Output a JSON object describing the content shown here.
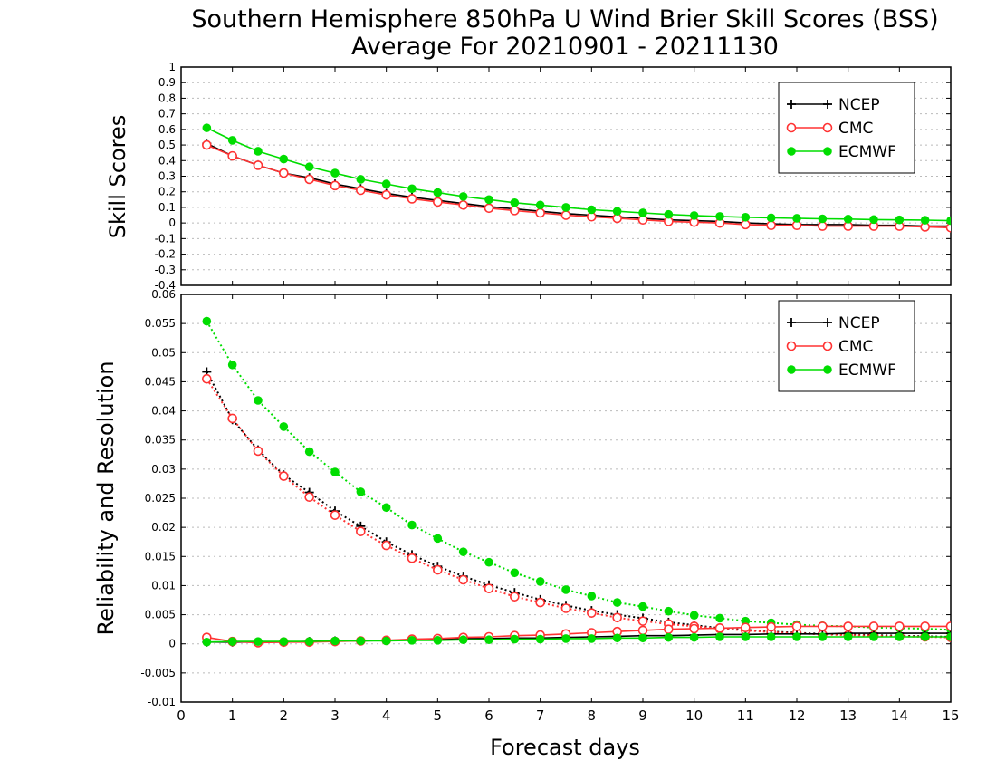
{
  "title": {
    "line1": "Southern Hemisphere 850hPa U Wind Brier Skill Scores (BSS)",
    "line2": "Average For 20210901 - 20211130"
  },
  "xlabel": "Forecast days",
  "colors": {
    "NCEP": "#000000",
    "CMC": "#ff3333",
    "ECMWF": "#00dd00"
  },
  "chart_data": [
    {
      "type": "line",
      "ylabel": "Skill Scores",
      "ylim": [
        -0.4,
        1
      ],
      "yticks": [
        "1",
        "0.9",
        "0.8",
        "0.7",
        "0.6",
        "0.5",
        "0.4",
        "0.3",
        "0.2",
        "0.1",
        "0",
        "-0.1",
        "-0.2",
        "-0.3",
        "-0.4"
      ],
      "xlim": [
        0,
        15
      ],
      "xticks": [
        "0",
        "1",
        "2",
        "3",
        "4",
        "5",
        "6",
        "7",
        "8",
        "9",
        "10",
        "11",
        "12",
        "13",
        "14",
        "15"
      ],
      "grid": true,
      "legend": "top-right",
      "x": [
        0.5,
        1,
        1.5,
        2,
        2.5,
        3,
        3.5,
        4,
        4.5,
        5,
        5.5,
        6,
        6.5,
        7,
        7.5,
        8,
        8.5,
        9,
        9.5,
        10,
        10.5,
        11,
        11.5,
        12,
        12.5,
        13,
        13.5,
        14,
        14.5,
        15
      ],
      "series": [
        {
          "name": "NCEP",
          "marker": "plus",
          "values": [
            0.51,
            0.43,
            0.37,
            0.32,
            0.29,
            0.25,
            0.22,
            0.19,
            0.165,
            0.145,
            0.125,
            0.105,
            0.09,
            0.075,
            0.06,
            0.05,
            0.04,
            0.03,
            0.02,
            0.015,
            0.01,
            0.0,
            -0.005,
            -0.01,
            -0.01,
            -0.01,
            -0.015,
            -0.015,
            -0.02,
            -0.02
          ]
        },
        {
          "name": "CMC",
          "marker": "open-circle",
          "values": [
            0.5,
            0.43,
            0.37,
            0.32,
            0.28,
            0.24,
            0.21,
            0.18,
            0.155,
            0.135,
            0.115,
            0.095,
            0.08,
            0.065,
            0.05,
            0.04,
            0.03,
            0.02,
            0.01,
            0.005,
            0.0,
            -0.01,
            -0.015,
            -0.015,
            -0.02,
            -0.02,
            -0.02,
            -0.02,
            -0.025,
            -0.03
          ]
        },
        {
          "name": "ECMWF",
          "marker": "filled-circle",
          "values": [
            0.61,
            0.53,
            0.46,
            0.41,
            0.36,
            0.32,
            0.28,
            0.25,
            0.22,
            0.195,
            0.17,
            0.15,
            0.13,
            0.115,
            0.1,
            0.085,
            0.075,
            0.065,
            0.055,
            0.048,
            0.042,
            0.037,
            0.033,
            0.03,
            0.027,
            0.025,
            0.022,
            0.02,
            0.018,
            0.015
          ]
        }
      ]
    },
    {
      "type": "line",
      "ylabel": "Reliability and Resolution",
      "ylim": [
        -0.01,
        0.06
      ],
      "yticks": [
        "0.06",
        "0.055",
        "0.05",
        "0.045",
        "0.04",
        "0.035",
        "0.03",
        "0.025",
        "0.02",
        "0.015",
        "0.01",
        "0.005",
        "0",
        "-0.005",
        "-0.01"
      ],
      "xlim": [
        0,
        15
      ],
      "xticks": [
        "0",
        "1",
        "2",
        "3",
        "4",
        "5",
        "6",
        "7",
        "8",
        "9",
        "10",
        "11",
        "12",
        "13",
        "14",
        "15"
      ],
      "grid": true,
      "legend": "top-right",
      "x": [
        0.5,
        1,
        1.5,
        2,
        2.5,
        3,
        3.5,
        4,
        4.5,
        5,
        5.5,
        6,
        6.5,
        7,
        7.5,
        8,
        8.5,
        9,
        9.5,
        10,
        10.5,
        11,
        11.5,
        12,
        12.5,
        13,
        13.5,
        14,
        14.5,
        15
      ],
      "series": [
        {
          "name": "NCEP",
          "role": "resolution",
          "linestyle": "dotted",
          "marker": "plus",
          "values": [
            0.0467,
            0.0385,
            0.0333,
            0.029,
            0.026,
            0.0228,
            0.0202,
            0.0175,
            0.0153,
            0.0133,
            0.0116,
            0.0101,
            0.0088,
            0.0076,
            0.0066,
            0.0057,
            0.005,
            0.0044,
            0.0037,
            0.0032,
            0.0027,
            0.0024,
            0.0021,
            0.0019,
            0.0017,
            0.0016,
            0.0015,
            0.0014,
            0.0013,
            0.0012
          ]
        },
        {
          "name": "CMC",
          "role": "resolution",
          "linestyle": "dotted",
          "marker": "open-circle",
          "values": [
            0.0455,
            0.0387,
            0.0331,
            0.0288,
            0.0252,
            0.0221,
            0.0193,
            0.0169,
            0.0147,
            0.0127,
            0.011,
            0.0095,
            0.0081,
            0.0071,
            0.0061,
            0.0053,
            0.0045,
            0.0039,
            0.0034,
            0.003,
            0.0026,
            0.0023,
            0.002,
            0.0018,
            0.0016,
            0.0015,
            0.0014,
            0.0013,
            0.0012,
            0.0011
          ]
        },
        {
          "name": "ECMWF",
          "role": "resolution",
          "linestyle": "dotted",
          "marker": "filled-circle",
          "values": [
            0.0554,
            0.0479,
            0.0418,
            0.0373,
            0.033,
            0.0295,
            0.0261,
            0.0234,
            0.0204,
            0.0181,
            0.0158,
            0.014,
            0.0122,
            0.0107,
            0.0093,
            0.0082,
            0.0071,
            0.0064,
            0.0056,
            0.0049,
            0.0044,
            0.0039,
            0.0036,
            0.0033,
            0.0031,
            0.003,
            0.0028,
            0.0027,
            0.0026,
            0.0024
          ]
        },
        {
          "name": "NCEP",
          "role": "reliability",
          "linestyle": "solid",
          "marker": "plus",
          "values": [
            0.0003,
            0.0003,
            0.0003,
            0.0003,
            0.0004,
            0.0005,
            0.0005,
            0.0006,
            0.0007,
            0.0008,
            0.0009,
            0.0009,
            0.001,
            0.001,
            0.0011,
            0.0012,
            0.0013,
            0.0014,
            0.0014,
            0.0015,
            0.0016,
            0.0016,
            0.0017,
            0.0017,
            0.0017,
            0.0018,
            0.0018,
            0.0018,
            0.0018,
            0.0018
          ]
        },
        {
          "name": "CMC",
          "role": "reliability",
          "linestyle": "solid",
          "marker": "open-circle",
          "values": [
            0.0011,
            0.0004,
            0.0002,
            0.0003,
            0.0003,
            0.0004,
            0.0005,
            0.0006,
            0.0008,
            0.0009,
            0.0011,
            0.0012,
            0.0014,
            0.0015,
            0.0017,
            0.0019,
            0.0021,
            0.0023,
            0.0025,
            0.0026,
            0.0027,
            0.0028,
            0.0029,
            0.003,
            0.003,
            0.003,
            0.003,
            0.003,
            0.003,
            0.003
          ]
        },
        {
          "name": "ECMWF",
          "role": "reliability",
          "linestyle": "solid",
          "marker": "filled-circle",
          "values": [
            0.0003,
            0.0004,
            0.0004,
            0.0004,
            0.0004,
            0.0005,
            0.0005,
            0.0005,
            0.0006,
            0.0006,
            0.0007,
            0.0007,
            0.0008,
            0.0008,
            0.0009,
            0.0009,
            0.001,
            0.001,
            0.0011,
            0.0011,
            0.0012,
            0.0012,
            0.0012,
            0.0012,
            0.0012,
            0.0012,
            0.0012,
            0.0012,
            0.0012,
            0.0012
          ]
        }
      ]
    }
  ]
}
